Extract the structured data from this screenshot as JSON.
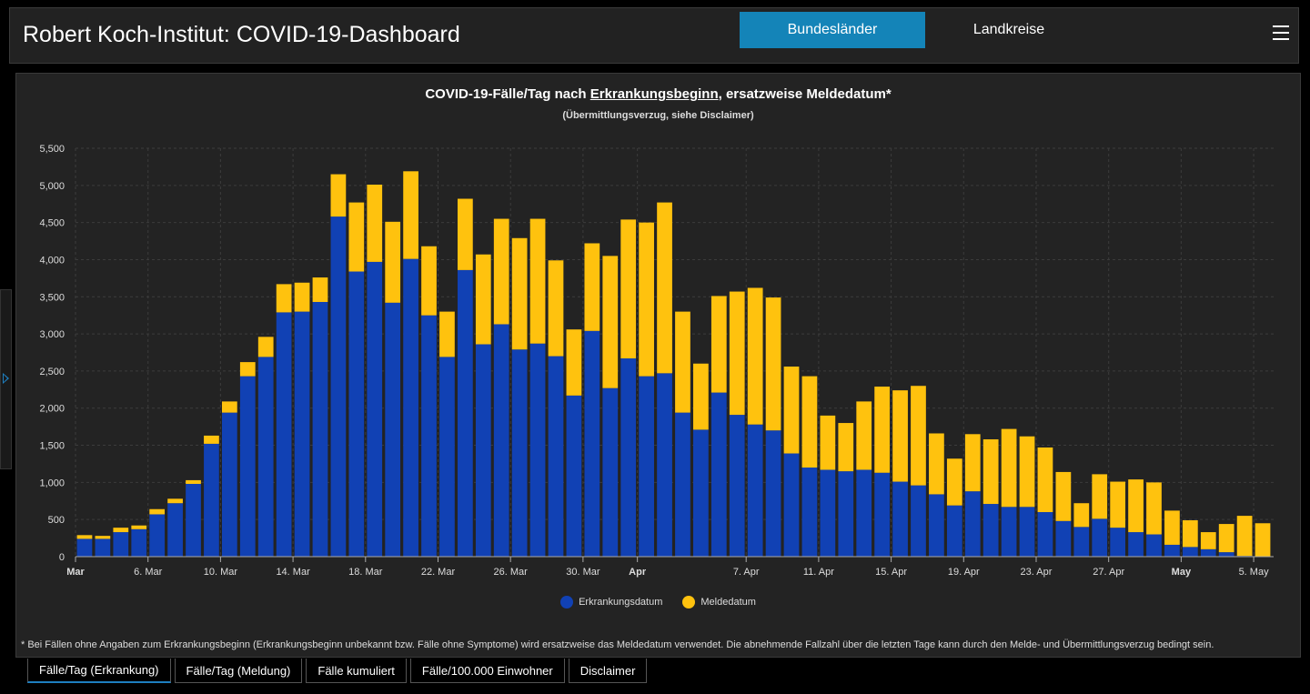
{
  "header": {
    "title": "Robert Koch-Institut: COVID-19-Dashboard",
    "tabs": [
      "Bundesländer",
      "Landkreise"
    ],
    "active_tab": "Bundesländer"
  },
  "chart": {
    "title_prefix": "COVID-19-Fälle/Tag nach ",
    "title_underlined": "Erkrankungsbeginn",
    "title_suffix": ", ersatzweise Meldedatum*",
    "subtitle": "(Übermittlungsverzug, siehe Disclaimer)",
    "footnote": "* Bei Fällen ohne Angaben zum Erkrankungsbeginn (Erkrankungsbeginn unbekannt bzw. Fälle ohne Symptome) wird ersatzweise das Meldedatum verwendet. Die abnehmende Fallzahl über die letzten Tage kann durch den Melde- und Übermittlungsverzug bedingt sein."
  },
  "chart_data": {
    "type": "bar",
    "stacked": true,
    "ylim": [
      0,
      5500
    ],
    "yticks": [
      "0",
      "500",
      "1,000",
      "1,500",
      "2,000",
      "2,500",
      "3,000",
      "3,500",
      "4,000",
      "4,500",
      "5,000",
      "5,500"
    ],
    "grid": true,
    "legend_position": "bottom-center",
    "x_ticks": [
      {
        "index": 0,
        "label": "Mar",
        "bold": true
      },
      {
        "index": 4,
        "label": "6. Mar",
        "bold": false
      },
      {
        "index": 8,
        "label": "10. Mar",
        "bold": false
      },
      {
        "index": 12,
        "label": "14. Mar",
        "bold": false
      },
      {
        "index": 16,
        "label": "18. Mar",
        "bold": false
      },
      {
        "index": 20,
        "label": "22. Mar",
        "bold": false
      },
      {
        "index": 24,
        "label": "26. Mar",
        "bold": false
      },
      {
        "index": 28,
        "label": "30. Mar",
        "bold": false
      },
      {
        "index": 31,
        "label": "Apr",
        "bold": true
      },
      {
        "index": 37,
        "label": "7. Apr",
        "bold": false
      },
      {
        "index": 41,
        "label": "11. Apr",
        "bold": false
      },
      {
        "index": 45,
        "label": "15. Apr",
        "bold": false
      },
      {
        "index": 49,
        "label": "19. Apr",
        "bold": false
      },
      {
        "index": 53,
        "label": "23. Apr",
        "bold": false
      },
      {
        "index": 57,
        "label": "27. Apr",
        "bold": false
      },
      {
        "index": 61,
        "label": "May",
        "bold": true
      },
      {
        "index": 65,
        "label": "5. May",
        "bold": false
      }
    ],
    "series": [
      {
        "name": "Erkrankungsdatum",
        "color": "#1141b4",
        "values": [
          240,
          240,
          330,
          370,
          570,
          720,
          980,
          1520,
          1940,
          2430,
          2690,
          3290,
          3300,
          3430,
          4580,
          3840,
          3970,
          3420,
          4010,
          3250,
          2690,
          3860,
          2860,
          3130,
          2790,
          2870,
          2700,
          2170,
          3040,
          2270,
          2670,
          2430,
          2470,
          1940,
          1710,
          2210,
          1910,
          1780,
          1700,
          1390,
          1200,
          1170,
          1150,
          1170,
          1130,
          1010,
          960,
          840,
          690,
          880,
          710,
          670,
          670,
          600,
          480,
          400,
          510,
          390,
          330,
          300,
          160,
          130,
          100,
          60,
          10,
          0
        ]
      },
      {
        "name": "Meldedatum",
        "color": "#ffc20e",
        "values": [
          50,
          40,
          60,
          50,
          70,
          60,
          50,
          110,
          150,
          190,
          270,
          380,
          390,
          330,
          570,
          930,
          1040,
          1090,
          1180,
          930,
          610,
          960,
          1210,
          1420,
          1500,
          1680,
          1290,
          890,
          1180,
          1780,
          1870,
          2070,
          2300,
          1360,
          890,
          1300,
          1660,
          1840,
          1790,
          1170,
          1230,
          730,
          650,
          920,
          1160,
          1230,
          1340,
          820,
          630,
          770,
          870,
          1050,
          950,
          870,
          660,
          320,
          600,
          620,
          710,
          700,
          460,
          360,
          230,
          380,
          540,
          450
        ]
      }
    ]
  },
  "legend": {
    "items": [
      {
        "label": "Erkrankungsdatum",
        "color": "#1141b4"
      },
      {
        "label": "Meldedatum",
        "color": "#ffc20e"
      }
    ]
  },
  "bottom_tabs": {
    "items": [
      "Fälle/Tag (Erkrankung)",
      "Fälle/Tag (Meldung)",
      "Fälle kumuliert",
      "Fälle/100.000 Einwohner",
      "Disclaimer"
    ],
    "active": "Fälle/Tag (Erkrankung)"
  }
}
